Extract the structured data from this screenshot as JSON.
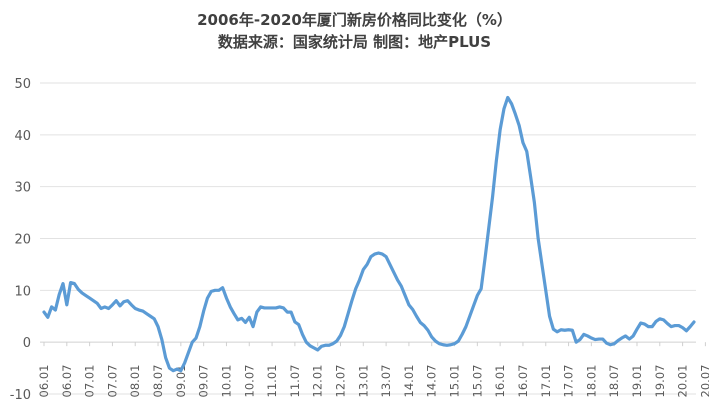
{
  "chart_data": {
    "type": "line",
    "title": "2006年-2020年厦门新房价格同比变化（%）",
    "subtitle": "数据来源：国家统计局 制图：地产PLUS",
    "xlabel": "",
    "ylabel": "",
    "ylim": [
      -10,
      50
    ],
    "y_ticks": [
      "50",
      "40",
      "30",
      "20",
      "10",
      "0",
      "-10"
    ],
    "x_tick_labels": [
      "06.01",
      "06.07",
      "07.01",
      "07.07",
      "08.01",
      "08.07",
      "09.01",
      "09.07",
      "10.01",
      "10.07",
      "11.01",
      "11.07",
      "12.01",
      "12.07",
      "13.01",
      "13.07",
      "14.01",
      "14.07",
      "15.01",
      "15.07",
      "16.01",
      "16.07",
      "17.01",
      "17.07",
      "18.01",
      "18.07",
      "19.01",
      "19.07",
      "20.01",
      "20.07"
    ],
    "line_color": "#5B9BD5",
    "grid": true,
    "legend": "none",
    "series": [
      {
        "values": [
          5.8,
          4.8,
          6.8,
          6.2,
          9.2,
          11.3,
          7.2,
          11.5,
          11.3,
          10.2,
          9.5,
          9.0,
          8.5,
          8.0,
          7.5,
          6.5,
          6.8,
          6.5,
          7.2,
          8.0,
          7.0,
          7.8,
          8.0,
          7.2,
          6.5,
          6.2,
          6.0,
          5.5,
          5.0,
          4.5,
          3.0,
          0.5,
          -3.0,
          -5.0,
          -5.5,
          -5.2,
          -5.5,
          -4.0,
          -2.0,
          0.0,
          0.8,
          3.0,
          6.0,
          8.5,
          9.8,
          10.0,
          10.0,
          10.5,
          8.5,
          6.8,
          5.5,
          4.3,
          4.6,
          3.8,
          4.8,
          3.0,
          5.8,
          6.8,
          6.6,
          6.6,
          6.6,
          6.6,
          6.8,
          6.6,
          5.8,
          5.8,
          3.9,
          3.4,
          1.5,
          0.0,
          -0.7,
          -1.1,
          -1.5,
          -0.8,
          -0.6,
          -0.6,
          -0.3,
          0.2,
          1.3,
          3.0,
          5.5,
          8.0,
          10.3,
          12.0,
          14.0,
          15.0,
          16.5,
          17.0,
          17.2,
          17.0,
          16.5,
          15.0,
          13.5,
          12.0,
          10.8,
          9.0,
          7.2,
          6.3,
          5.0,
          3.8,
          3.2,
          2.3,
          1.0,
          0.2,
          -0.3,
          -0.5,
          -0.6,
          -0.5,
          -0.3,
          0.2,
          1.5,
          3.0,
          5.0,
          7.0,
          9.0,
          10.3,
          16.0,
          22.0,
          28.0,
          35.0,
          41.0,
          45.0,
          47.2,
          46.0,
          44.0,
          41.8,
          38.5,
          36.8,
          32.0,
          27.0,
          20.0,
          15.0,
          10.0,
          5.0,
          2.5,
          2.0,
          2.4,
          2.3,
          2.4,
          2.3,
          0.0,
          0.5,
          1.5,
          1.2,
          0.8,
          0.5,
          0.6,
          0.6,
          -0.2,
          -0.5,
          -0.3,
          0.3,
          0.8,
          1.2,
          0.6,
          1.2,
          2.5,
          3.7,
          3.5,
          3.0,
          3.0,
          4.0,
          4.5,
          4.3,
          3.6,
          3.0,
          3.2,
          3.2,
          2.8,
          2.2,
          3.0,
          3.9
        ]
      }
    ]
  }
}
